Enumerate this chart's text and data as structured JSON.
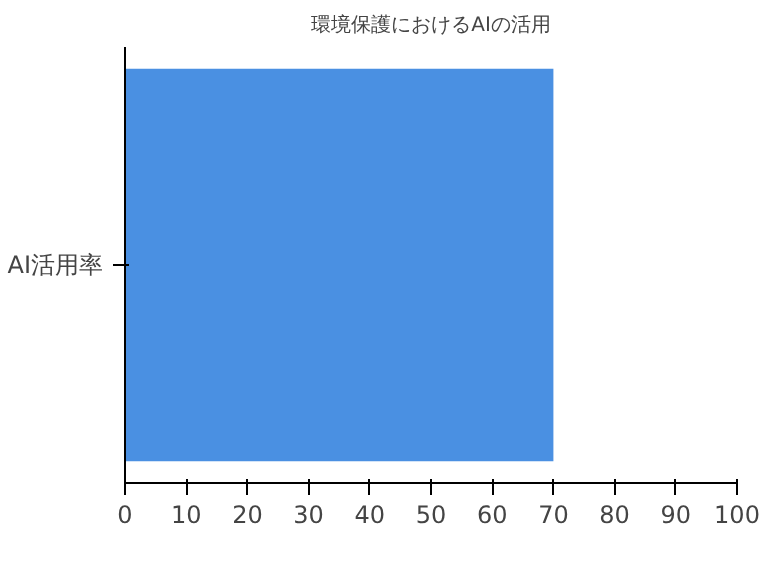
{
  "chart_data": {
    "type": "bar",
    "orientation": "horizontal",
    "title": "環境保護におけるAIの活用",
    "categories": [
      "AI活用率"
    ],
    "values": [
      70
    ],
    "color": "#4a90e2",
    "xlim": [
      0,
      100
    ],
    "xticks": [
      0,
      10,
      20,
      30,
      40,
      50,
      60,
      70,
      80,
      90,
      100
    ],
    "grid": false
  }
}
